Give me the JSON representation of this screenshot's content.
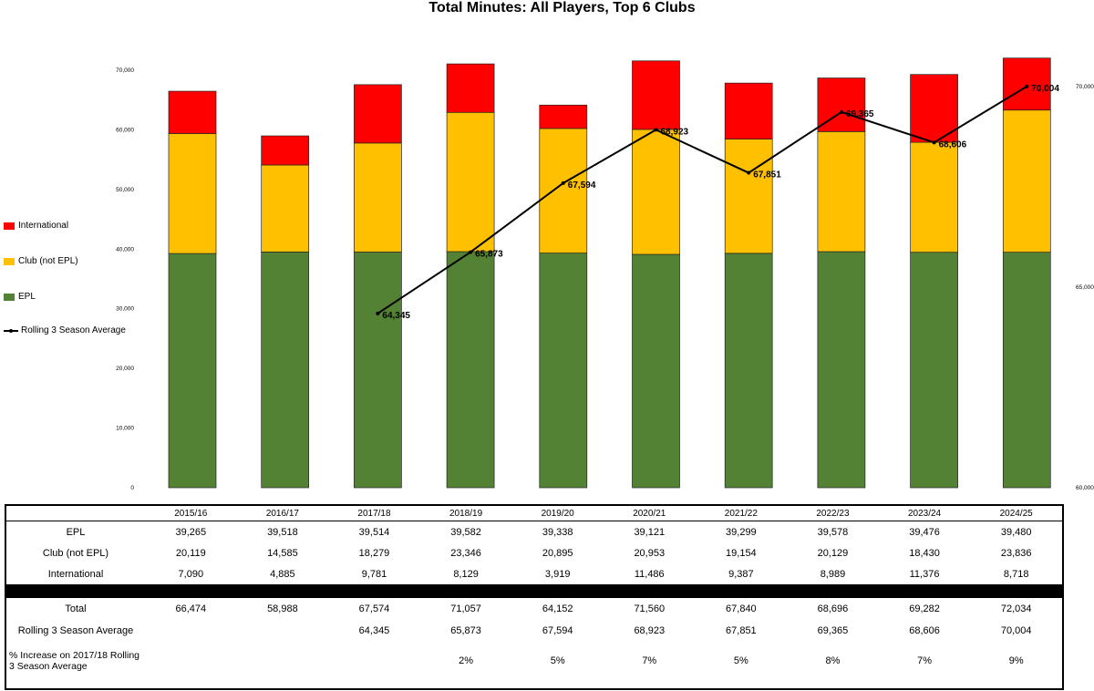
{
  "chart_data": {
    "type": "bar",
    "stacked": true,
    "title": "Total Minutes: All Players, Top 6 Clubs",
    "categories": [
      "2015/16",
      "2016/17",
      "2017/18",
      "2018/19",
      "2019/20",
      "2020/21",
      "2021/22",
      "2022/23",
      "2023/24",
      "2024/25"
    ],
    "series": [
      {
        "name": "EPL",
        "color": "#548235",
        "values": [
          39265,
          39518,
          39514,
          39582,
          39338,
          39121,
          39299,
          39578,
          39476,
          39480
        ]
      },
      {
        "name": "Club (not EPL)",
        "color": "#FFC000",
        "values": [
          20119,
          14585,
          18279,
          23346,
          20895,
          20953,
          19154,
          20129,
          18430,
          23836
        ]
      },
      {
        "name": "International",
        "color": "#FF0000",
        "values": [
          7090,
          4885,
          9781,
          8129,
          3919,
          11486,
          9387,
          8989,
          11376,
          8718
        ]
      }
    ],
    "line_series": {
      "name": "Rolling 3 Season Average",
      "color": "#000000",
      "axis": "right",
      "values": [
        null,
        null,
        64345,
        65873,
        67594,
        68923,
        67851,
        69365,
        68606,
        70004
      ],
      "labels": [
        null,
        null,
        "64,345",
        "65,873",
        "67,594",
        "68,923",
        "67,851",
        "69,365",
        "68,606",
        "70,004"
      ]
    },
    "ylim": [
      0,
      70000
    ],
    "yticks": [
      "0",
      "10,000",
      "20,000",
      "30,000",
      "40,000",
      "50,000",
      "60,000",
      "70,000"
    ],
    "y2lim": [
      60000,
      70000
    ],
    "y2ticks": [
      "60,000",
      "65,000",
      "70,000"
    ],
    "legend_position": "left"
  },
  "legend": {
    "international": "International",
    "club": "Club (not EPL)",
    "epl": "EPL",
    "rolling": "Rolling 3 Season Average"
  },
  "table": {
    "seasons": [
      "2015/16",
      "2016/17",
      "2017/18",
      "2018/19",
      "2019/20",
      "2020/21",
      "2021/22",
      "2022/23",
      "2023/24",
      "2024/25"
    ],
    "rows": [
      {
        "label": "EPL",
        "values": [
          "39,265",
          "39,518",
          "39,514",
          "39,582",
          "39,338",
          "39,121",
          "39,299",
          "39,578",
          "39,476",
          "39,480"
        ]
      },
      {
        "label": "Club (not EPL)",
        "values": [
          "20,119",
          "14,585",
          "18,279",
          "23,346",
          "20,895",
          "20,953",
          "19,154",
          "20,129",
          "18,430",
          "23,836"
        ]
      },
      {
        "label": "International",
        "values": [
          "7,090",
          "4,885",
          "9,781",
          "8,129",
          "3,919",
          "11,486",
          "9,387",
          "8,989",
          "11,376",
          "8,718"
        ]
      }
    ],
    "total": {
      "label": "Total",
      "values": [
        "66,474",
        "58,988",
        "67,574",
        "71,057",
        "64,152",
        "71,560",
        "67,840",
        "68,696",
        "69,282",
        "72,034"
      ]
    },
    "rolling": {
      "label": "Rolling 3 Season Average",
      "values": [
        "",
        "",
        "64,345",
        "65,873",
        "67,594",
        "68,923",
        "67,851",
        "69,365",
        "68,606",
        "70,004"
      ]
    },
    "pct": {
      "label": "% Increase on 2017/18 Rolling 3 Season Average",
      "values": [
        "",
        "",
        "",
        "2%",
        "5%",
        "7%",
        "5%",
        "8%",
        "7%",
        "9%"
      ]
    }
  }
}
